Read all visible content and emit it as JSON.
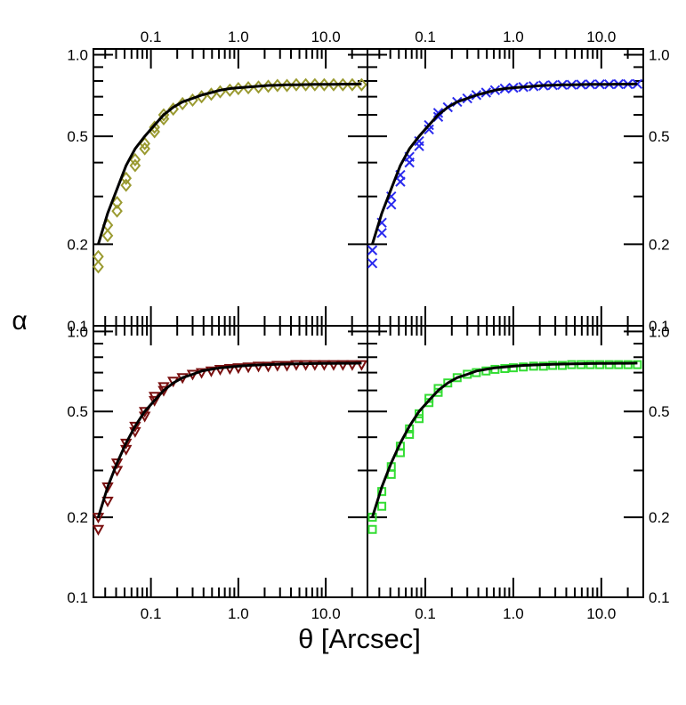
{
  "figure": {
    "ylabel": "α",
    "xlabel": "θ [Arcsec]"
  },
  "chart_data": [
    {
      "panel": "top-left",
      "type": "scatter",
      "xscale": "log",
      "yscale": "log",
      "xlim": [
        0.022,
        30
      ],
      "ylim": [
        0.1,
        1.05
      ],
      "x_ticklabels": [
        "0.1",
        "1.0",
        "10.0"
      ],
      "y_ticklabels": [
        "0.1",
        "0.2",
        "0.5",
        "1.0"
      ],
      "x_ticklabels_position": "top",
      "y_ticklabels_position": "left",
      "color": "#9a9a30",
      "marker": "diamond",
      "points": {
        "x": [
          0.025,
          0.025,
          0.032,
          0.032,
          0.041,
          0.041,
          0.052,
          0.052,
          0.066,
          0.066,
          0.085,
          0.085,
          0.11,
          0.11,
          0.14,
          0.14,
          0.18,
          0.23,
          0.3,
          0.38,
          0.49,
          0.62,
          0.8,
          1.0,
          1.3,
          1.7,
          2.2,
          2.8,
          3.6,
          4.6,
          5.9,
          7.5,
          9.6,
          12.3,
          15.7,
          20.1,
          25.7
        ],
        "y": [
          0.165,
          0.18,
          0.215,
          0.235,
          0.265,
          0.285,
          0.33,
          0.35,
          0.39,
          0.41,
          0.45,
          0.47,
          0.52,
          0.54,
          0.58,
          0.6,
          0.63,
          0.66,
          0.68,
          0.7,
          0.715,
          0.73,
          0.74,
          0.75,
          0.755,
          0.76,
          0.765,
          0.77,
          0.77,
          0.775,
          0.775,
          0.775,
          0.775,
          0.775,
          0.775,
          0.775,
          0.775
        ]
      },
      "model": {
        "x": [
          0.025,
          0.032,
          0.041,
          0.052,
          0.066,
          0.085,
          0.11,
          0.14,
          0.18,
          0.23,
          0.3,
          0.38,
          0.49,
          0.62,
          0.8,
          1.0,
          1.3,
          1.7,
          2.2,
          2.8,
          3.6,
          4.6,
          5.9,
          7.5,
          9.6,
          12.3,
          15.7,
          20.1,
          25.7
        ],
        "y": [
          0.2,
          0.26,
          0.32,
          0.39,
          0.45,
          0.5,
          0.55,
          0.6,
          0.64,
          0.67,
          0.69,
          0.71,
          0.725,
          0.74,
          0.75,
          0.755,
          0.76,
          0.765,
          0.77,
          0.772,
          0.774,
          0.775,
          0.776,
          0.777,
          0.778,
          0.778,
          0.779,
          0.779,
          0.78
        ]
      }
    },
    {
      "panel": "top-right",
      "type": "scatter",
      "xscale": "log",
      "yscale": "log",
      "xlim": [
        0.022,
        30
      ],
      "ylim": [
        0.1,
        1.05
      ],
      "x_ticklabels": [
        "0.1",
        "1.0",
        "10.0"
      ],
      "y_ticklabels": [
        "0.1",
        "0.2",
        "0.5",
        "1.0"
      ],
      "x_ticklabels_position": "top",
      "y_ticklabels_position": "right",
      "color": "#2a2aee",
      "marker": "x",
      "points": {
        "x": [
          0.025,
          0.025,
          0.032,
          0.032,
          0.041,
          0.041,
          0.052,
          0.052,
          0.066,
          0.066,
          0.085,
          0.085,
          0.11,
          0.11,
          0.14,
          0.14,
          0.18,
          0.23,
          0.3,
          0.38,
          0.49,
          0.62,
          0.8,
          1.0,
          1.3,
          1.7,
          2.2,
          2.8,
          3.6,
          4.6,
          5.9,
          7.5,
          9.6,
          12.3,
          15.7,
          20.1,
          25.7
        ],
        "y": [
          0.17,
          0.19,
          0.22,
          0.24,
          0.28,
          0.3,
          0.34,
          0.36,
          0.4,
          0.42,
          0.46,
          0.48,
          0.53,
          0.55,
          0.59,
          0.61,
          0.64,
          0.67,
          0.69,
          0.71,
          0.725,
          0.74,
          0.75,
          0.755,
          0.76,
          0.765,
          0.77,
          0.772,
          0.774,
          0.775,
          0.776,
          0.777,
          0.778,
          0.778,
          0.779,
          0.779,
          0.78
        ]
      },
      "model": {
        "x": [
          0.025,
          0.032,
          0.041,
          0.052,
          0.066,
          0.085,
          0.11,
          0.14,
          0.18,
          0.23,
          0.3,
          0.38,
          0.49,
          0.62,
          0.8,
          1.0,
          1.3,
          1.7,
          2.2,
          2.8,
          3.6,
          4.6,
          5.9,
          7.5,
          9.6,
          12.3,
          15.7,
          20.1,
          25.7
        ],
        "y": [
          0.2,
          0.26,
          0.32,
          0.39,
          0.45,
          0.5,
          0.55,
          0.6,
          0.64,
          0.67,
          0.69,
          0.71,
          0.725,
          0.74,
          0.75,
          0.755,
          0.76,
          0.765,
          0.77,
          0.772,
          0.774,
          0.775,
          0.776,
          0.777,
          0.778,
          0.778,
          0.779,
          0.779,
          0.78
        ]
      }
    },
    {
      "panel": "bottom-left",
      "type": "scatter",
      "xscale": "log",
      "yscale": "log",
      "xlim": [
        0.022,
        30
      ],
      "ylim": [
        0.1,
        1.05
      ],
      "x_ticklabels": [
        "0.1",
        "1.0",
        "10.0"
      ],
      "y_ticklabels": [
        "0.1",
        "0.2",
        "0.5",
        "1.0"
      ],
      "x_ticklabels_position": "bottom",
      "y_ticklabels_position": "left",
      "color": "#7a1010",
      "marker": "triangle-down",
      "points": {
        "x": [
          0.025,
          0.025,
          0.032,
          0.032,
          0.041,
          0.041,
          0.052,
          0.052,
          0.066,
          0.066,
          0.085,
          0.085,
          0.11,
          0.11,
          0.14,
          0.14,
          0.18,
          0.23,
          0.3,
          0.38,
          0.49,
          0.62,
          0.8,
          1.0,
          1.3,
          1.7,
          2.2,
          2.8,
          3.6,
          4.6,
          5.9,
          7.5,
          9.6,
          12.3,
          15.7,
          20.1,
          25.7
        ],
        "y": [
          0.18,
          0.2,
          0.23,
          0.26,
          0.3,
          0.32,
          0.36,
          0.38,
          0.42,
          0.44,
          0.48,
          0.5,
          0.55,
          0.57,
          0.6,
          0.62,
          0.65,
          0.67,
          0.69,
          0.7,
          0.71,
          0.72,
          0.725,
          0.73,
          0.735,
          0.74,
          0.74,
          0.745,
          0.745,
          0.75,
          0.75,
          0.75,
          0.75,
          0.75,
          0.75,
          0.75,
          0.75
        ]
      },
      "model": {
        "x": [
          0.025,
          0.032,
          0.041,
          0.052,
          0.066,
          0.085,
          0.11,
          0.14,
          0.18,
          0.23,
          0.3,
          0.38,
          0.49,
          0.62,
          0.8,
          1.0,
          1.3,
          1.7,
          2.2,
          2.8,
          3.6,
          4.6,
          5.9,
          7.5,
          9.6,
          12.3,
          15.7,
          20.1,
          25.7
        ],
        "y": [
          0.2,
          0.26,
          0.32,
          0.38,
          0.44,
          0.5,
          0.55,
          0.6,
          0.64,
          0.67,
          0.69,
          0.71,
          0.72,
          0.73,
          0.735,
          0.74,
          0.745,
          0.748,
          0.75,
          0.752,
          0.754,
          0.755,
          0.756,
          0.757,
          0.758,
          0.758,
          0.759,
          0.759,
          0.76
        ]
      }
    },
    {
      "panel": "bottom-right",
      "type": "scatter",
      "xscale": "log",
      "yscale": "log",
      "xlim": [
        0.022,
        30
      ],
      "ylim": [
        0.1,
        1.05
      ],
      "x_ticklabels": [
        "0.1",
        "1.0",
        "10.0"
      ],
      "y_ticklabels": [
        "0.1",
        "0.2",
        "0.5",
        "1.0"
      ],
      "x_ticklabels_position": "bottom",
      "y_ticklabels_position": "right",
      "color": "#33dd33",
      "marker": "square",
      "points": {
        "x": [
          0.025,
          0.025,
          0.032,
          0.032,
          0.041,
          0.041,
          0.052,
          0.052,
          0.066,
          0.066,
          0.085,
          0.085,
          0.11,
          0.11,
          0.14,
          0.14,
          0.18,
          0.23,
          0.3,
          0.38,
          0.49,
          0.62,
          0.8,
          1.0,
          1.3,
          1.7,
          2.2,
          2.8,
          3.6,
          4.6,
          5.9,
          7.5,
          9.6,
          12.3,
          15.7,
          20.1,
          25.7
        ],
        "y": [
          0.18,
          0.2,
          0.22,
          0.25,
          0.29,
          0.31,
          0.35,
          0.37,
          0.41,
          0.43,
          0.47,
          0.49,
          0.54,
          0.56,
          0.59,
          0.61,
          0.64,
          0.67,
          0.69,
          0.7,
          0.71,
          0.72,
          0.725,
          0.73,
          0.735,
          0.74,
          0.74,
          0.745,
          0.745,
          0.75,
          0.75,
          0.75,
          0.75,
          0.75,
          0.75,
          0.75,
          0.75
        ]
      },
      "model": {
        "x": [
          0.025,
          0.032,
          0.041,
          0.052,
          0.066,
          0.085,
          0.11,
          0.14,
          0.18,
          0.23,
          0.3,
          0.38,
          0.49,
          0.62,
          0.8,
          1.0,
          1.3,
          1.7,
          2.2,
          2.8,
          3.6,
          4.6,
          5.9,
          7.5,
          9.6,
          12.3,
          15.7,
          20.1,
          25.7
        ],
        "y": [
          0.2,
          0.26,
          0.32,
          0.38,
          0.44,
          0.5,
          0.55,
          0.6,
          0.64,
          0.67,
          0.69,
          0.71,
          0.72,
          0.73,
          0.735,
          0.74,
          0.745,
          0.748,
          0.75,
          0.752,
          0.754,
          0.755,
          0.756,
          0.757,
          0.758,
          0.758,
          0.759,
          0.759,
          0.76
        ]
      }
    }
  ]
}
